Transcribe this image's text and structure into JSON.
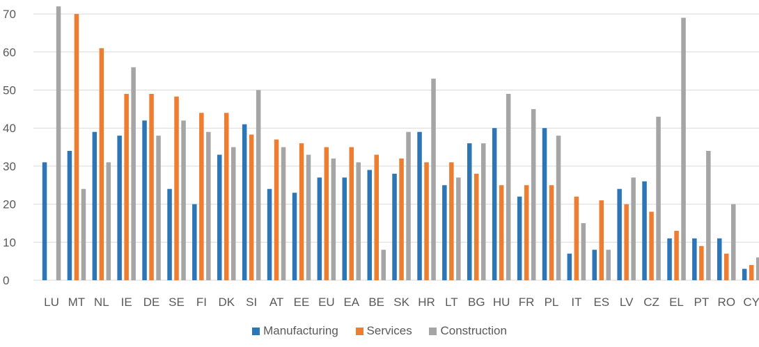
{
  "chart_data": {
    "type": "bar",
    "categories": [
      "LU",
      "MT",
      "NL",
      "IE",
      "DE",
      "SE",
      "FI",
      "DK",
      "SI",
      "AT",
      "EE",
      "EU",
      "EA",
      "BE",
      "SK",
      "HR",
      "LT",
      "BG",
      "HU",
      "FR",
      "PL",
      "IT",
      "ES",
      "LV",
      "CZ",
      "EL",
      "PT",
      "RO",
      "CY"
    ],
    "series": [
      {
        "name": "Manufacturing",
        "color": "#2e75b6",
        "values": [
          31,
          34,
          39,
          38,
          42,
          24,
          20,
          33,
          41,
          24,
          23,
          27,
          27,
          29,
          28,
          39,
          25,
          36,
          40,
          22,
          40,
          7,
          8,
          24,
          26,
          11,
          11,
          11,
          3
        ]
      },
      {
        "name": "Services",
        "color": "#ed7d31",
        "values": [
          null,
          70,
          61,
          49,
          49,
          48.3,
          44,
          44,
          38.3,
          37,
          36,
          35,
          35,
          33,
          32,
          31,
          31,
          28,
          25,
          25,
          25,
          22,
          21,
          20,
          18,
          13,
          9,
          7,
          4
        ]
      },
      {
        "name": "Construction",
        "color": "#a5a5a5",
        "values": [
          72,
          24,
          31,
          56,
          38,
          42,
          39,
          35,
          50,
          35,
          33,
          32,
          31,
          8,
          39,
          53,
          27,
          36,
          49,
          45,
          38,
          15,
          8,
          27,
          43,
          69,
          34,
          20,
          6
        ]
      }
    ],
    "y_ticks": [
      "0",
      "10",
      "20",
      "30",
      "40",
      "50",
      "60",
      "70"
    ],
    "ylim": [
      0,
      73
    ],
    "grid": true,
    "legend_position": "bottom",
    "title": "",
    "xlabel": "",
    "ylabel": ""
  }
}
